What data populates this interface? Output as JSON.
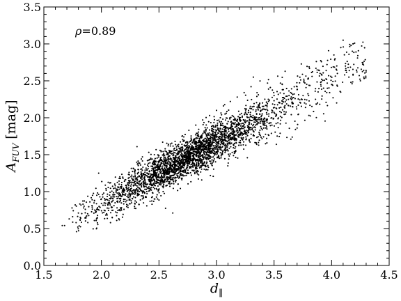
{
  "chart_data": {
    "type": "scatter",
    "title": "",
    "xlabel": "d",
    "xlabel_sub": "∥",
    "ylabel_main": "A",
    "ylabel_sub": "FUV",
    "ylabel_unit": " [mag]",
    "xlim": [
      1.5,
      4.5
    ],
    "ylim": [
      0.0,
      3.5
    ],
    "xticks": [
      "1.5",
      "2.0",
      "2.5",
      "3.0",
      "3.5",
      "4.0",
      "4.5"
    ],
    "yticks": [
      "0.0",
      "0.5",
      "1.0",
      "1.5",
      "2.0",
      "2.5",
      "3.0",
      "3.5"
    ],
    "grid": false,
    "legend": "none",
    "marker_color": "#000000",
    "annotation": {
      "symbol": "ρ",
      "text": "=0.89"
    },
    "n_points": 3000,
    "points": [
      [
        1.66,
        0.54
      ],
      [
        1.68,
        0.54
      ],
      [
        1.72,
        0.63
      ],
      [
        1.75,
        0.66
      ],
      [
        1.78,
        0.58
      ],
      [
        1.8,
        0.71
      ],
      [
        1.82,
        0.64
      ],
      [
        1.84,
        0.83
      ],
      [
        1.86,
        0.76
      ],
      [
        1.88,
        0.7
      ],
      [
        1.9,
        0.86
      ],
      [
        1.92,
        0.79
      ],
      [
        1.94,
        0.88
      ],
      [
        1.96,
        0.95
      ],
      [
        1.98,
        0.75
      ],
      [
        2.0,
        0.9
      ],
      [
        2.02,
        0.98
      ],
      [
        2.04,
        1.04
      ],
      [
        2.06,
        0.85
      ],
      [
        2.08,
        1.12
      ],
      [
        2.1,
        0.96
      ],
      [
        2.12,
        1.08
      ],
      [
        2.14,
        1.02
      ],
      [
        2.16,
        1.2
      ],
      [
        2.18,
        0.94
      ],
      [
        2.2,
        1.14
      ],
      [
        2.22,
        1.06
      ],
      [
        2.24,
        1.26
      ],
      [
        2.26,
        1.1
      ],
      [
        2.28,
        1.31
      ],
      [
        2.3,
        1.17
      ],
      [
        2.32,
        1.02
      ],
      [
        2.34,
        1.36
      ],
      [
        2.36,
        1.22
      ],
      [
        2.38,
        1.13
      ],
      [
        2.4,
        1.42
      ],
      [
        2.42,
        1.28
      ],
      [
        2.44,
        1.19
      ],
      [
        2.46,
        1.5
      ],
      [
        2.48,
        1.33
      ],
      [
        2.5,
        1.24
      ],
      [
        2.52,
        1.55
      ],
      [
        2.54,
        1.4
      ],
      [
        2.56,
        1.3
      ],
      [
        2.58,
        1.62
      ],
      [
        2.6,
        1.45
      ],
      [
        2.62,
        1.34
      ],
      [
        2.62,
        0.71
      ],
      [
        2.64,
        1.68
      ],
      [
        2.66,
        1.5
      ],
      [
        2.68,
        1.38
      ],
      [
        2.7,
        1.75
      ],
      [
        2.72,
        1.56
      ],
      [
        2.74,
        1.44
      ],
      [
        2.76,
        1.83
      ],
      [
        2.78,
        1.6
      ],
      [
        2.8,
        1.48
      ],
      [
        2.82,
        1.9
      ],
      [
        2.84,
        1.66
      ],
      [
        2.86,
        1.53
      ],
      [
        2.88,
        1.97
      ],
      [
        2.9,
        1.72
      ],
      [
        2.92,
        1.58
      ],
      [
        2.94,
        2.03
      ],
      [
        2.96,
        1.77
      ],
      [
        2.98,
        1.62
      ],
      [
        3.0,
        2.1
      ],
      [
        3.02,
        1.83
      ],
      [
        3.04,
        1.67
      ],
      [
        3.06,
        2.16
      ],
      [
        3.08,
        1.88
      ],
      [
        3.1,
        1.72
      ],
      [
        3.12,
        2.22
      ],
      [
        3.14,
        1.93
      ],
      [
        3.16,
        1.76
      ],
      [
        3.18,
        2.28
      ],
      [
        3.2,
        2.0
      ],
      [
        3.22,
        1.8
      ],
      [
        3.24,
        2.34
      ],
      [
        3.26,
        2.05
      ],
      [
        3.28,
        1.85
      ],
      [
        3.3,
        2.42
      ],
      [
        3.32,
        2.55
      ],
      [
        3.34,
        1.9
      ],
      [
        3.36,
        2.12
      ],
      [
        3.38,
        1.76
      ],
      [
        3.4,
        2.2
      ],
      [
        3.42,
        1.95
      ],
      [
        3.45,
        2.25
      ],
      [
        3.48,
        2.0
      ],
      [
        3.5,
        2.3
      ],
      [
        3.52,
        1.64
      ],
      [
        3.55,
        2.2
      ],
      [
        3.58,
        2.38
      ],
      [
        3.6,
        2.05
      ],
      [
        3.63,
        2.3
      ],
      [
        3.66,
        2.15
      ],
      [
        3.7,
        2.42
      ],
      [
        3.73,
        2.2
      ],
      [
        3.76,
        2.5
      ],
      [
        3.8,
        2.3
      ],
      [
        3.83,
        2.56
      ],
      [
        3.86,
        2.25
      ],
      [
        3.9,
        2.6
      ],
      [
        3.93,
        2.4
      ],
      [
        3.96,
        2.72
      ],
      [
        4.0,
        2.45
      ],
      [
        4.02,
        2.85
      ],
      [
        4.05,
        2.6
      ],
      [
        4.08,
        2.95
      ],
      [
        4.1,
        3.05
      ],
      [
        4.12,
        2.7
      ],
      [
        4.15,
        2.55
      ],
      [
        4.18,
        2.9
      ],
      [
        4.2,
        3.01
      ],
      [
        4.22,
        2.62
      ],
      [
        4.25,
        2.5
      ],
      [
        4.28,
        2.55
      ],
      [
        4.3,
        2.62
      ]
    ]
  }
}
